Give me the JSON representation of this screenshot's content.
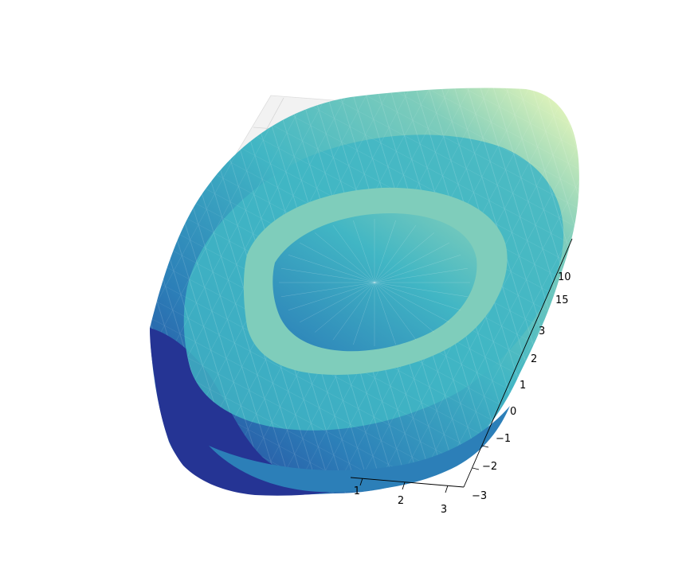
{
  "chart_data": {
    "type": "surface",
    "surface_kind": "3d-trisurf",
    "title": "",
    "xlabel": "",
    "ylabel": "",
    "zlabel": "",
    "colormap": "YlGnBu_r",
    "colors": {
      "low": "#253494",
      "mid_low": "#2c7fb8",
      "mid": "#41b6c4",
      "mid_high": "#7fcdbb",
      "high": "#f7fcb9"
    },
    "x_axis": {
      "range": [
        -3,
        3
      ],
      "visible_ticks": [
        "1",
        "2",
        "3"
      ]
    },
    "y_axis": {
      "range": [
        -3,
        3
      ],
      "visible_ticks": [
        "3",
        "2",
        "1",
        "0",
        "−1",
        "−2",
        "−3"
      ]
    },
    "z_axis": {
      "visible_ticks": [
        "10",
        "15"
      ]
    },
    "grid": true,
    "legend": "none"
  }
}
